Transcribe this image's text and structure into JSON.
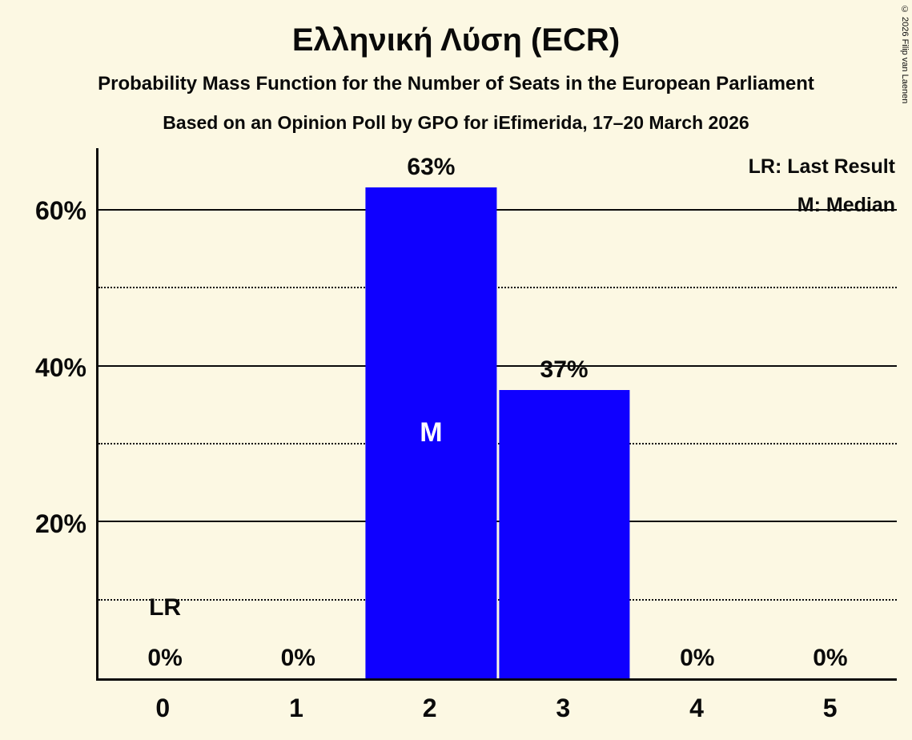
{
  "page": {
    "title": "Ελληνική Λύση (ECR)",
    "subtitle1": "Probability Mass Function for the Number of Seats in the European Parliament",
    "subtitle2": "Based on an Opinion Poll by GPO for iEfimerida, 17–20 March 2026",
    "copyright": "© 2026 Filip van Laenen"
  },
  "legend": {
    "lr_label": "LR: Last Result",
    "m_label": "M: Median"
  },
  "colors": {
    "background": "#FCF8E3",
    "bar": "#0F00FF",
    "text": "#0A0A0A",
    "median_label": "#FFFFFF"
  },
  "chart_data": {
    "type": "bar",
    "title": "Ελληνική Λύση (ECR)",
    "subtitle": "Probability Mass Function for the Number of Seats in the European Parliament",
    "source_line": "Based on an Opinion Poll by GPO for iEfimerida, 17–20 March 2026",
    "categories": [
      "0",
      "1",
      "2",
      "3",
      "4",
      "5"
    ],
    "values": [
      0,
      0,
      63,
      37,
      0,
      0
    ],
    "value_labels": [
      "0%",
      "0%",
      "63%",
      "37%",
      "0%",
      "0%"
    ],
    "xlabel": "",
    "ylabel": "",
    "ylim": [
      0,
      68
    ],
    "solid_gridlines": [
      20,
      40,
      60
    ],
    "dotted_gridlines": [
      10,
      30,
      50
    ],
    "ytick_labels": [
      {
        "value": 20,
        "label": "20%"
      },
      {
        "value": 40,
        "label": "40%"
      },
      {
        "value": 60,
        "label": "60%"
      }
    ],
    "median": {
      "index": 2,
      "label": "M"
    },
    "last_result": {
      "index": 0,
      "label": "LR"
    },
    "legend_position": "top-right",
    "grid": true
  }
}
